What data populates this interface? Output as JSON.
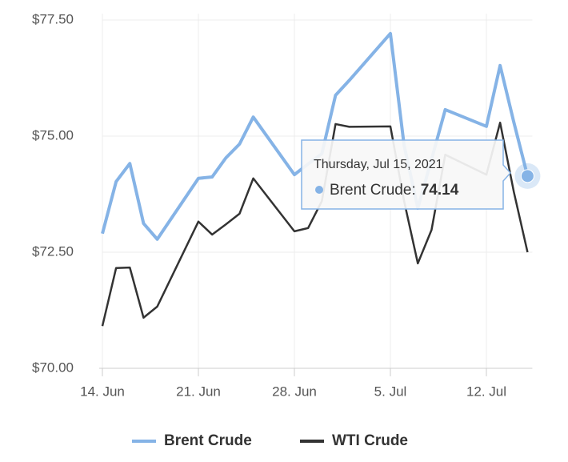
{
  "chart_data": {
    "type": "line",
    "x": [
      "2021-06-14",
      "2021-06-15",
      "2021-06-16",
      "2021-06-17",
      "2021-06-18",
      "2021-06-21",
      "2021-06-22",
      "2021-06-23",
      "2021-06-24",
      "2021-06-25",
      "2021-06-28",
      "2021-06-29",
      "2021-06-30",
      "2021-07-01",
      "2021-07-02",
      "2021-07-05",
      "2021-07-06",
      "2021-07-07",
      "2021-07-08",
      "2021-07-09",
      "2021-07-12",
      "2021-07-13",
      "2021-07-14",
      "2021-07-15"
    ],
    "series": [
      {
        "name": "Brent Crude",
        "color": "#85b3e6",
        "values": [
          72.9,
          74.02,
          74.41,
          73.12,
          72.78,
          74.09,
          74.12,
          74.53,
          74.83,
          75.41,
          74.17,
          74.4,
          74.62,
          75.88,
          76.2,
          77.21,
          74.8,
          73.45,
          74.5,
          75.57,
          75.21,
          76.52,
          75.3,
          74.14
        ]
      },
      {
        "name": "WTI Crude",
        "color": "#333333",
        "values": [
          70.91,
          72.16,
          72.17,
          71.09,
          71.33,
          73.16,
          72.88,
          73.1,
          73.33,
          74.09,
          72.95,
          73.02,
          73.6,
          75.26,
          75.2,
          75.21,
          73.6,
          72.26,
          72.98,
          74.6,
          74.17,
          75.29,
          73.8,
          72.5
        ]
      }
    ],
    "xlim": [
      "2021-06-14",
      "2021-07-15"
    ],
    "xticks": [
      {
        "value": "2021-06-14",
        "label": "14. Jun"
      },
      {
        "value": "2021-06-21",
        "label": "21. Jun"
      },
      {
        "value": "2021-06-28",
        "label": "28. Jun"
      },
      {
        "value": "2021-07-05",
        "label": "5. Jul"
      },
      {
        "value": "2021-07-12",
        "label": "12. Jul"
      }
    ],
    "ylim": [
      70,
      77.5
    ],
    "yticks": [
      {
        "value": 70,
        "label": "$70.00"
      },
      {
        "value": 72.5,
        "label": "$72.50"
      },
      {
        "value": 75,
        "label": "$75.00"
      },
      {
        "value": 77.5,
        "label": "$77.50"
      }
    ],
    "grid": true,
    "legend": "bottom",
    "tooltip": {
      "date": "Thursday, Jul 15, 2021",
      "label": "Brent Crude:"
    }
  }
}
